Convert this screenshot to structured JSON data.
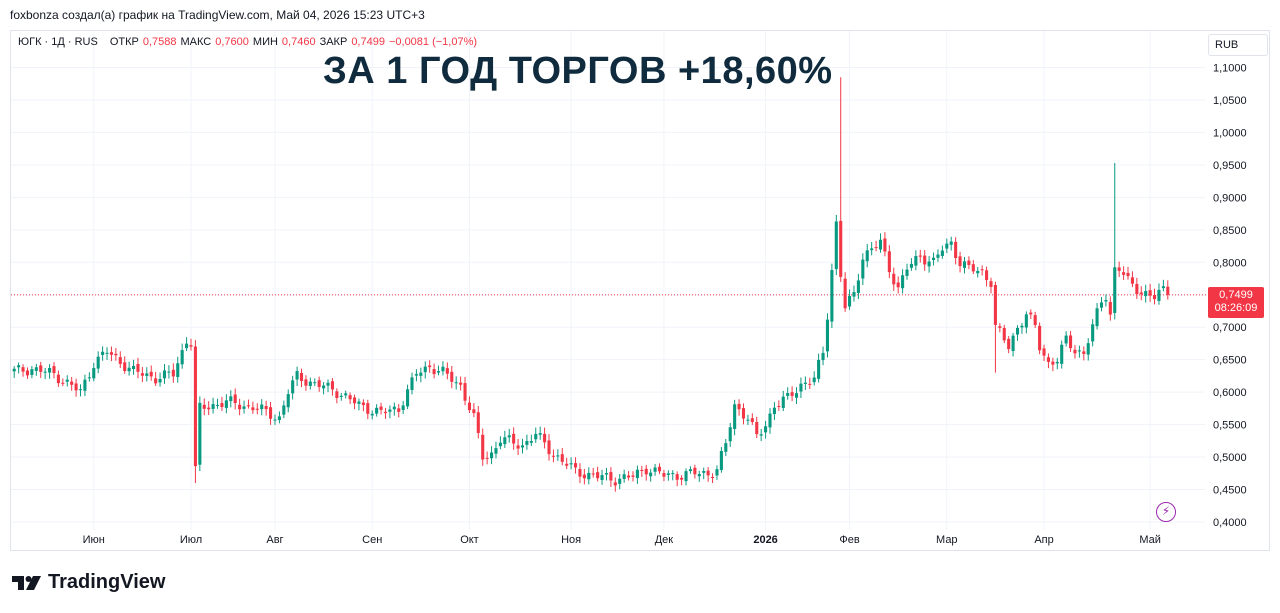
{
  "caption": "foxbonza создал(а) график на TradingView.com, Май 04, 2026 15:23 UTC+3",
  "headline": "ЗА 1 ГОД ТОРГОВ +18,60%",
  "legend": {
    "symbol": "ЮГК · 1Д · RUS",
    "open_label": "ОТКР",
    "open_value": "0,7588",
    "high_label": "МАКС",
    "high_value": "0,7600",
    "low_label": "МИН",
    "low_value": "0,7460",
    "close_label": "ЗАКР",
    "close_value": "0,7499",
    "change": "−0,0081 (−1,07%)"
  },
  "currency": "RUB",
  "last_price": {
    "price": "0,7499",
    "countdown": "08:26:09"
  },
  "brand": "TradingView",
  "colors": {
    "up": "#089981",
    "down": "#f23645",
    "headline": "#0f2b3d",
    "accent": "#9c27b0"
  },
  "icons": {
    "alert": "lightning-icon",
    "logo": "tradingview-logo-icon"
  },
  "chart_data": {
    "type": "candlestick",
    "title": "",
    "xlabel": "",
    "ylabel": "",
    "ylim": [
      0.4,
      1.1
    ],
    "yticks": [
      "0,4000",
      "0,4500",
      "0,5000",
      "0,5500",
      "0,6000",
      "0,6500",
      "0,7000",
      "0,7500",
      "0,8000",
      "0,8500",
      "0,9000",
      "0,9500",
      "1,0000",
      "1,0500",
      "1,1000"
    ],
    "xlabels": [
      {
        "label": "Июн",
        "index": 18
      },
      {
        "label": "Июл",
        "index": 40
      },
      {
        "label": "Авг",
        "index": 59
      },
      {
        "label": "Сен",
        "index": 81
      },
      {
        "label": "Окт",
        "index": 103
      },
      {
        "label": "Ноя",
        "index": 126
      },
      {
        "label": "Дек",
        "index": 147
      },
      {
        "label": "2026",
        "index": 170,
        "bold": true
      },
      {
        "label": "Фев",
        "index": 189
      },
      {
        "label": "Мар",
        "index": 211
      },
      {
        "label": "Апр",
        "index": 233
      },
      {
        "label": "Май",
        "index": 257
      }
    ],
    "key_points": [
      [
        0,
        0.632
      ],
      [
        4,
        0.636
      ],
      [
        9,
        0.628
      ],
      [
        15,
        0.6
      ],
      [
        18,
        0.645
      ],
      [
        21,
        0.662
      ],
      [
        27,
        0.632
      ],
      [
        32,
        0.622
      ],
      [
        36,
        0.628
      ],
      [
        39,
        0.68
      ],
      [
        40,
        0.676
      ],
      [
        41,
        0.48
      ],
      [
        42,
        0.575
      ],
      [
        48,
        0.585
      ],
      [
        55,
        0.575
      ],
      [
        60,
        0.56
      ],
      [
        62,
        0.6
      ],
      [
        64,
        0.625
      ],
      [
        68,
        0.612
      ],
      [
        72,
        0.605
      ],
      [
        78,
        0.58
      ],
      [
        83,
        0.568
      ],
      [
        87,
        0.575
      ],
      [
        91,
        0.628
      ],
      [
        94,
        0.64
      ],
      [
        97,
        0.63
      ],
      [
        101,
        0.61
      ],
      [
        104,
        0.56
      ],
      [
        106,
        0.5
      ],
      [
        108,
        0.505
      ],
      [
        110,
        0.528
      ],
      [
        115,
        0.518
      ],
      [
        118,
        0.535
      ],
      [
        122,
        0.505
      ],
      [
        127,
        0.478
      ],
      [
        132,
        0.47
      ],
      [
        136,
        0.466
      ],
      [
        140,
        0.47
      ],
      [
        143,
        0.483
      ],
      [
        147,
        0.472
      ],
      [
        150,
        0.472
      ],
      [
        154,
        0.475
      ],
      [
        157,
        0.475
      ],
      [
        159,
        0.48
      ],
      [
        161,
        0.52
      ],
      [
        163,
        0.58
      ],
      [
        166,
        0.56
      ],
      [
        168,
        0.53
      ],
      [
        170,
        0.55
      ],
      [
        172,
        0.58
      ],
      [
        175,
        0.59
      ],
      [
        178,
        0.612
      ],
      [
        181,
        0.62
      ],
      [
        183,
        0.66
      ],
      [
        184,
        0.72
      ],
      [
        186,
        0.86
      ],
      [
        187,
        0.78
      ],
      [
        188,
        0.73
      ],
      [
        190,
        0.75
      ],
      [
        192,
        0.81
      ],
      [
        194,
        0.82
      ],
      [
        196,
        0.83
      ],
      [
        198,
        0.79
      ],
      [
        200,
        0.76
      ],
      [
        202,
        0.79
      ],
      [
        205,
        0.81
      ],
      [
        208,
        0.8
      ],
      [
        210,
        0.82
      ],
      [
        212,
        0.83
      ],
      [
        214,
        0.8
      ],
      [
        216,
        0.79
      ],
      [
        219,
        0.785
      ],
      [
        221,
        0.77
      ],
      [
        222,
        0.7
      ],
      [
        223,
        0.69
      ],
      [
        225,
        0.67
      ],
      [
        227,
        0.7
      ],
      [
        229,
        0.72
      ],
      [
        231,
        0.7
      ],
      [
        232,
        0.67
      ],
      [
        234,
        0.645
      ],
      [
        236,
        0.65
      ],
      [
        238,
        0.68
      ],
      [
        240,
        0.665
      ],
      [
        242,
        0.66
      ],
      [
        244,
        0.7
      ],
      [
        246,
        0.74
      ],
      [
        247,
        0.75
      ],
      [
        248,
        0.72
      ],
      [
        249,
        0.79
      ],
      [
        250,
        0.79
      ],
      [
        252,
        0.77
      ],
      [
        255,
        0.755
      ],
      [
        258,
        0.745
      ],
      [
        260,
        0.758
      ],
      [
        261,
        0.75
      ]
    ],
    "spikes": [
      {
        "index": 187,
        "high": 1.085
      },
      {
        "index": 249,
        "high": 0.953
      },
      {
        "index": 41,
        "low": 0.46
      },
      {
        "index": 222,
        "low": 0.63
      }
    ],
    "last_close": 0.7499,
    "total_bars": 262
  }
}
